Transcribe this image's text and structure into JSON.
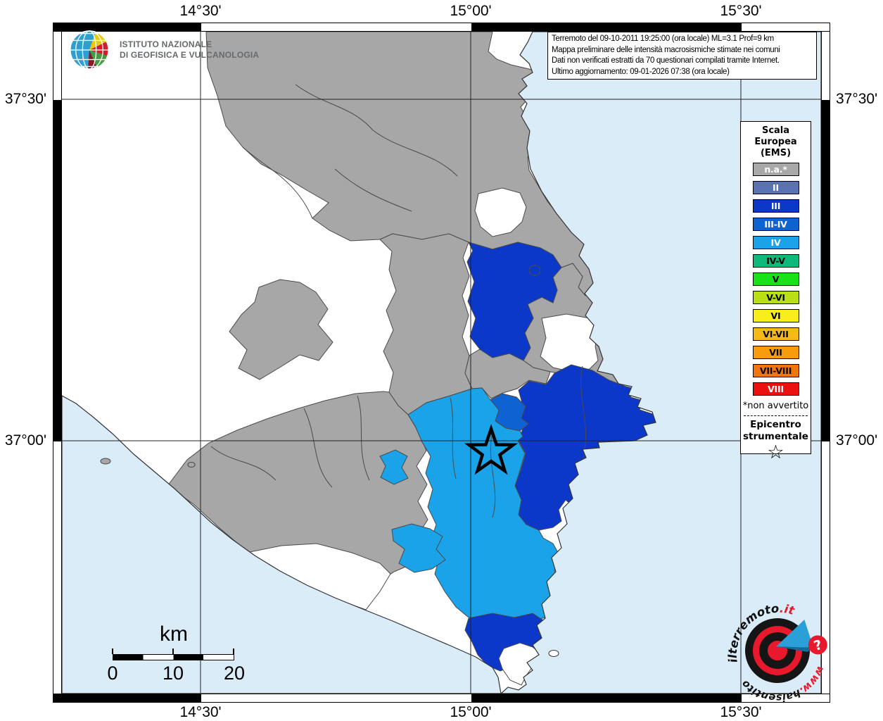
{
  "colors": {
    "sea": "#d9ecf8",
    "land": "#ffffff",
    "municipality_gray": "#a7a7a7",
    "intensity_iii": "#0b38c8",
    "intensity_iii_iv": "#0f62d2",
    "intensity_iv": "#1aa3e8"
  },
  "map": {
    "grid_labels_top": [
      "14°30'",
      "15°00'",
      "15°30'"
    ],
    "grid_labels_bottom": [
      "14°30'",
      "15°00'",
      "15°30'"
    ],
    "grid_labels_left": [
      "37°30'",
      "37°00'"
    ],
    "grid_labels_right": [
      "37°30'",
      "37°00'"
    ]
  },
  "info_box": {
    "line1": "Terremoto del 09-10-2011 19:25:00 (ora locale) ML=3.1 Prof=9 km",
    "line2": "Mappa preliminare delle intensità macrosismiche stimate nei comuni",
    "line3": "Dati non verificati estratti da 70 questionari compilati tramite Internet.",
    "line4": "Ultimo aggiornamento: 09-01-2026 07:38 (ora locale)"
  },
  "ingv": {
    "line1": "ISTITUTO NAZIONALE",
    "line2": "DI GEOFISICA E VULCANOLOGIA"
  },
  "legend": {
    "title_lines": [
      "Scala",
      "Europea",
      "(EMS)"
    ],
    "items": [
      {
        "label": "n.a.*",
        "color": "#a8a8a8",
        "text_color": "#ffffff"
      },
      {
        "label": "II",
        "color": "#5a71b4",
        "text_color": "#ffffff"
      },
      {
        "label": "III",
        "color": "#0b38c8",
        "text_color": "#ffffff"
      },
      {
        "label": "III-IV",
        "color": "#0f62d2",
        "text_color": "#ffffff"
      },
      {
        "label": "IV",
        "color": "#1aa3e8",
        "text_color": "#ffffff"
      },
      {
        "label": "IV-V",
        "color": "#10b97a",
        "text_color": "#000000"
      },
      {
        "label": "V",
        "color": "#19e219",
        "text_color": "#000000"
      },
      {
        "label": "V-VI",
        "color": "#b9e012",
        "text_color": "#000000"
      },
      {
        "label": "VI",
        "color": "#f7ee1a",
        "text_color": "#000000"
      },
      {
        "label": "VI-VII",
        "color": "#f7ba14",
        "text_color": "#000000"
      },
      {
        "label": "VII",
        "color": "#f79d0c",
        "text_color": "#000000"
      },
      {
        "label": "VII-VIII",
        "color": "#f2750e",
        "text_color": "#000000"
      },
      {
        "label": "VIII",
        "color": "#eb1111",
        "text_color": "#ffffff"
      }
    ],
    "footnote": "*non avvertito",
    "epicenter_lines": [
      "Epicentro",
      "strumentale"
    ],
    "epicenter_symbol": "☆"
  },
  "scale_bar": {
    "unit": "km",
    "tick_labels": [
      "0",
      "10",
      "20"
    ]
  },
  "watermark": {
    "top_text": "ilterremoto",
    "top_suffix": ".it",
    "bottom_text": "www.haisentito",
    "badge": "?"
  }
}
